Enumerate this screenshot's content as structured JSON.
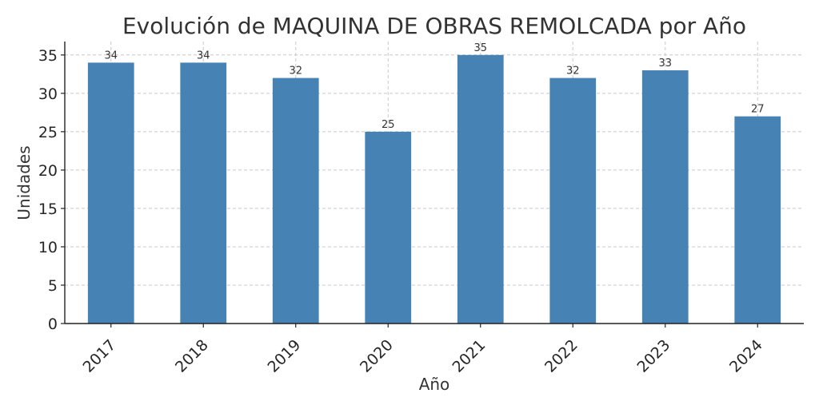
{
  "chart_data": {
    "type": "bar",
    "title": "Evolución de MAQUINA DE OBRAS REMOLCADA por Año",
    "xlabel": "Año",
    "ylabel": "Unidades",
    "categories": [
      "2017",
      "2018",
      "2019",
      "2020",
      "2021",
      "2022",
      "2023",
      "2024"
    ],
    "values": [
      34,
      34,
      32,
      25,
      35,
      32,
      33,
      27
    ],
    "ylim": [
      0,
      36.75
    ],
    "yticks": [
      0,
      5,
      10,
      15,
      20,
      25,
      30,
      35
    ],
    "grid": true,
    "bar_color": "#4682B4",
    "data_labels": true
  }
}
